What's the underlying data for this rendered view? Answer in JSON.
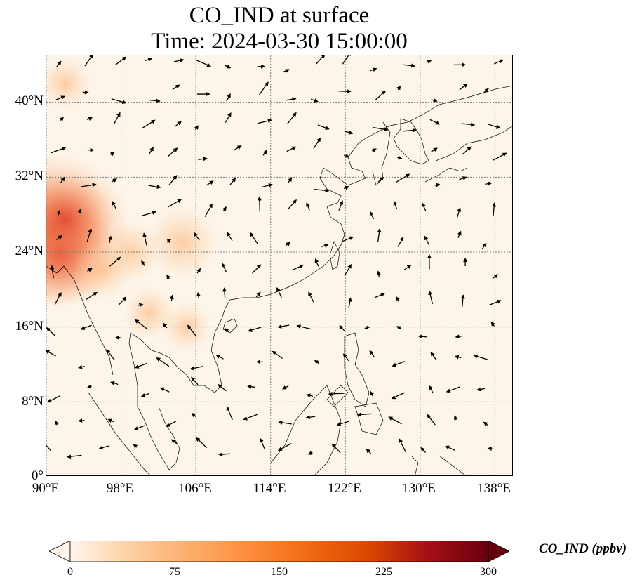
{
  "title_line1": "CO_IND at surface",
  "title_line2": "Time: 2024-03-30 15:00:00",
  "map": {
    "extent": {
      "lon_min": 90,
      "lon_max": 140,
      "lat_min": 0,
      "lat_max": 45
    },
    "lat_ticks": [
      {
        "value": 0,
        "label": "0°"
      },
      {
        "value": 8,
        "label": "8°N"
      },
      {
        "value": 16,
        "label": "16°N"
      },
      {
        "value": 24,
        "label": "24°N"
      },
      {
        "value": 32,
        "label": "32°N"
      },
      {
        "value": 40,
        "label": "40°N"
      }
    ],
    "lon_ticks": [
      {
        "value": 90,
        "label": "90°E"
      },
      {
        "value": 98,
        "label": "98°E"
      },
      {
        "value": 106,
        "label": "106°E"
      },
      {
        "value": 114,
        "label": "114°E"
      },
      {
        "value": 122,
        "label": "122°E"
      },
      {
        "value": 130,
        "label": "130°E"
      },
      {
        "value": 138,
        "label": "138°E"
      }
    ],
    "gridlines": true,
    "background_color": "#fdf5ea",
    "hotspots": [
      {
        "lon": 90.8,
        "lat": 26.3,
        "value": 200
      },
      {
        "lon": 91.5,
        "lat": 24.0,
        "value": 130
      },
      {
        "lon": 92.0,
        "lat": 27.5,
        "value": 110
      },
      {
        "lon": 104.5,
        "lat": 25.0,
        "value": 70
      },
      {
        "lon": 99.0,
        "lat": 24.0,
        "value": 55
      },
      {
        "lon": 96.0,
        "lat": 22.0,
        "value": 50
      },
      {
        "lon": 101.0,
        "lat": 17.5,
        "value": 40
      },
      {
        "lon": 105.0,
        "lat": 16.0,
        "value": 35
      },
      {
        "lon": 92.0,
        "lat": 42.0,
        "value": 40
      }
    ],
    "wind_vectors_description": "surface wind arrows"
  },
  "colorbar": {
    "label": "CO_IND (ppbv)",
    "min": 0,
    "max": 300,
    "ticks": [
      "0",
      "75",
      "150",
      "225",
      "300"
    ],
    "extend": "both",
    "colors": [
      "#fff5eb",
      "#fdd0a2",
      "#fdae6b",
      "#fd8d3c",
      "#f16913",
      "#d94801",
      "#a50f15",
      "#67000d"
    ]
  }
}
